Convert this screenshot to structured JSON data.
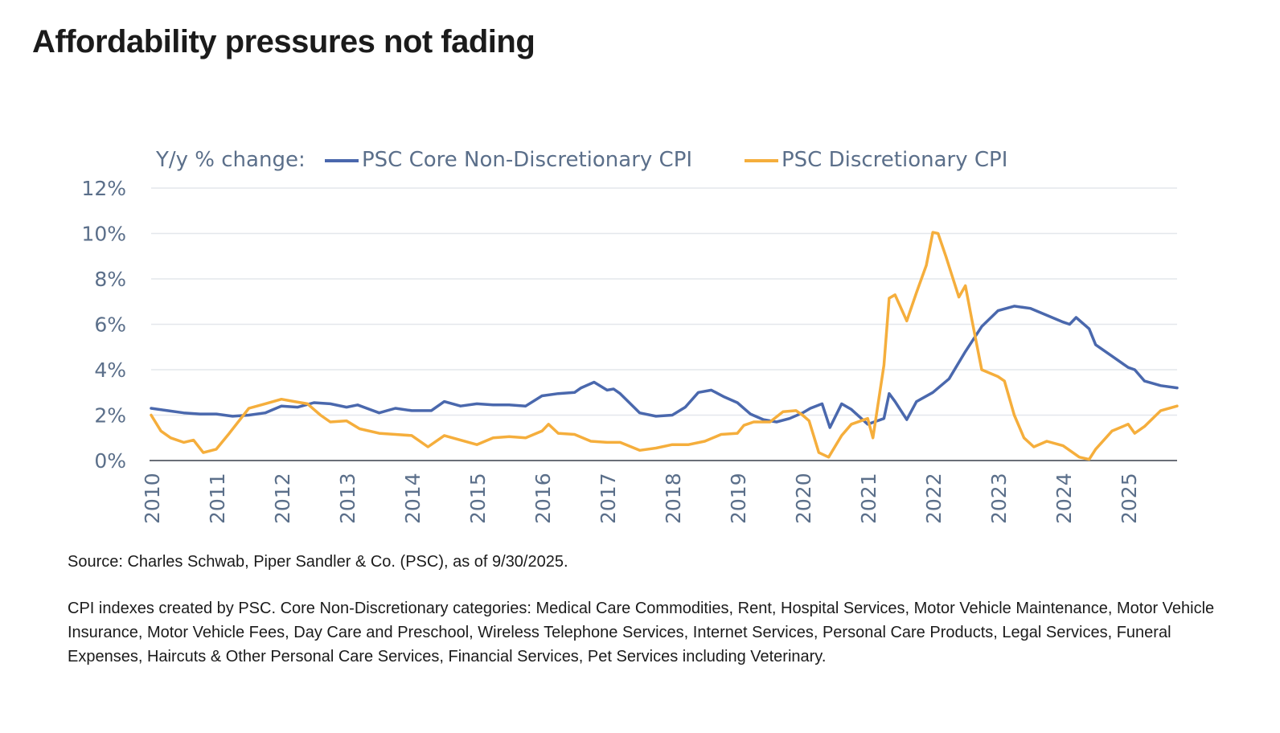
{
  "page": {
    "title": "Affordability pressures not fading",
    "source_note": "Source: Charles Schwab, Piper Sandler & Co. (PSC), as of 9/30/2025.",
    "footnote": "CPI indexes created by PSC. Core Non-Discretionary categories: Medical Care Commodities, Rent, Hospital Services, Motor Vehicle Maintenance, Motor Vehicle Insurance, Motor Vehicle Fees, Day Care and Preschool, Wireless Telephone Services, Internet Services, Personal Care Products, Legal Services, Funeral Expenses, Haircuts & Other Personal Care Services, Financial Services, Pet Services including Veterinary."
  },
  "chart_data": {
    "type": "line",
    "legend_prefix": "Y/y % change:",
    "legend_position": "top",
    "y_tick_labels": [
      "0%",
      "2%",
      "4%",
      "6%",
      "8%",
      "10%",
      "12%"
    ],
    "y_ticks": [
      0,
      2,
      4,
      6,
      8,
      10,
      12
    ],
    "ylim": [
      0,
      12
    ],
    "x_tick_labels": [
      "2010",
      "2011",
      "2012",
      "2013",
      "2014",
      "2015",
      "2016",
      "2017",
      "2018",
      "2019",
      "2020",
      "2021",
      "2022",
      "2023",
      "2024",
      "2025"
    ],
    "xlim": [
      2010,
      2025.75
    ],
    "grid": "horizontal",
    "series": [
      {
        "name": "PSC Core Non-Discretionary CPI",
        "color": "#4a68ad",
        "x": [
          2010,
          2010.25,
          2010.5,
          2010.75,
          2011,
          2011.25,
          2011.5,
          2011.75,
          2012,
          2012.25,
          2012.5,
          2012.75,
          2013,
          2013.17,
          2013.5,
          2013.75,
          2014,
          2014.3,
          2014.5,
          2014.75,
          2015,
          2015.25,
          2015.5,
          2015.75,
          2016,
          2016.25,
          2016.5,
          2016.6,
          2016.8,
          2017,
          2017.1,
          2017.2,
          2017.5,
          2017.75,
          2018,
          2018.2,
          2018.4,
          2018.6,
          2018.8,
          2019,
          2019.2,
          2019.4,
          2019.6,
          2019.8,
          2020,
          2020.12,
          2020.3,
          2020.42,
          2020.6,
          2020.75,
          2021,
          2021.1,
          2021.25,
          2021.33,
          2021.42,
          2021.6,
          2021.75,
          2022,
          2022.25,
          2022.5,
          2022.75,
          2023,
          2023.25,
          2023.5,
          2023.75,
          2024,
          2024.1,
          2024.2,
          2024.4,
          2024.5,
          2024.75,
          2025,
          2025.1,
          2025.25,
          2025.5,
          2025.75
        ],
        "values": [
          2.3,
          2.2,
          2.1,
          2.05,
          2.05,
          1.95,
          2.0,
          2.1,
          2.4,
          2.35,
          2.55,
          2.5,
          2.35,
          2.45,
          2.1,
          2.3,
          2.2,
          2.2,
          2.6,
          2.4,
          2.5,
          2.45,
          2.45,
          2.4,
          2.85,
          2.95,
          3.0,
          3.2,
          3.45,
          3.1,
          3.15,
          2.95,
          2.1,
          1.95,
          2.0,
          2.35,
          3.0,
          3.1,
          2.8,
          2.55,
          2.05,
          1.8,
          1.7,
          1.85,
          2.1,
          2.3,
          2.5,
          1.45,
          2.5,
          2.25,
          1.6,
          1.7,
          1.85,
          2.95,
          2.6,
          1.8,
          2.6,
          3.0,
          3.6,
          4.8,
          5.9,
          6.6,
          6.8,
          6.7,
          6.4,
          6.1,
          6.0,
          6.3,
          5.8,
          5.1,
          4.6,
          4.1,
          4.0,
          3.5,
          3.3,
          3.2
        ]
      },
      {
        "name": "PSC Discretionary CPI",
        "color": "#f5ae3c",
        "x": [
          2010,
          2010.15,
          2010.3,
          2010.5,
          2010.65,
          2010.8,
          2011,
          2011.2,
          2011.5,
          2011.75,
          2012,
          2012.2,
          2012.4,
          2012.6,
          2012.75,
          2013,
          2013.2,
          2013.5,
          2013.75,
          2014,
          2014.25,
          2014.5,
          2014.75,
          2015,
          2015.25,
          2015.5,
          2015.75,
          2016,
          2016.1,
          2016.25,
          2016.5,
          2016.75,
          2017,
          2017.2,
          2017.5,
          2017.75,
          2018,
          2018.25,
          2018.5,
          2018.75,
          2019,
          2019.1,
          2019.25,
          2019.5,
          2019.7,
          2019.9,
          2020,
          2020.1,
          2020.25,
          2020.4,
          2020.6,
          2020.75,
          2021,
          2021.08,
          2021.25,
          2021.33,
          2021.42,
          2021.6,
          2021.75,
          2021.9,
          2022,
          2022.08,
          2022.2,
          2022.4,
          2022.5,
          2022.6,
          2022.75,
          2023,
          2023.1,
          2023.25,
          2023.4,
          2023.55,
          2023.75,
          2024,
          2024.25,
          2024.4,
          2024.5,
          2024.75,
          2025,
          2025.1,
          2025.25,
          2025.5,
          2025.75
        ],
        "values": [
          2.0,
          1.3,
          1.0,
          0.8,
          0.9,
          0.35,
          0.5,
          1.2,
          2.3,
          2.5,
          2.7,
          2.6,
          2.5,
          2.0,
          1.7,
          1.75,
          1.4,
          1.2,
          1.15,
          1.1,
          0.6,
          1.1,
          0.9,
          0.7,
          1.0,
          1.05,
          1.0,
          1.3,
          1.6,
          1.2,
          1.15,
          0.85,
          0.8,
          0.8,
          0.45,
          0.55,
          0.7,
          0.7,
          0.85,
          1.15,
          1.2,
          1.55,
          1.7,
          1.7,
          2.15,
          2.2,
          2.0,
          1.75,
          0.35,
          0.15,
          1.1,
          1.6,
          1.85,
          1.0,
          4.2,
          7.15,
          7.3,
          6.15,
          7.4,
          8.6,
          10.05,
          10.0,
          9.0,
          7.2,
          7.7,
          6.2,
          4.0,
          3.7,
          3.5,
          2.0,
          1.0,
          0.6,
          0.85,
          0.65,
          0.15,
          0.05,
          0.5,
          1.3,
          1.6,
          1.2,
          1.5,
          2.2,
          2.4
        ]
      }
    ]
  }
}
